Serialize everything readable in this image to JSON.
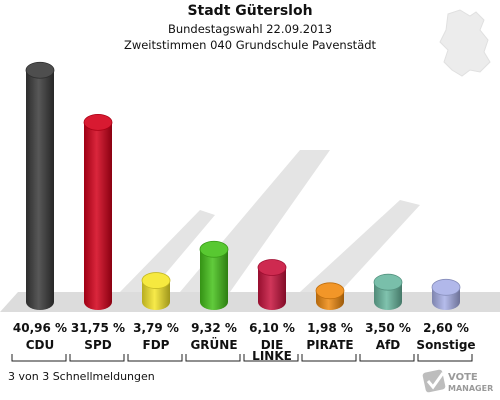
{
  "header": {
    "title": "Stadt Gütersloh",
    "subtitle": "Bundestagswahl 22.09.2013",
    "subtitle2": "Zweitstimmen 040 Grundschule Pavenstädt"
  },
  "footer": {
    "text": "3 von 3 Schnellmeldungen"
  },
  "watermark": {
    "line1": "VOTE",
    "line2": "MANAGER"
  },
  "chart_data": {
    "type": "bar",
    "title": "Stadt Gütersloh",
    "categories": [
      "CDU",
      "SPD",
      "FDP",
      "GRÜNE",
      "DIE LINKE",
      "PIRATE",
      "AfD",
      "Sonstige"
    ],
    "category_lines": [
      [
        "CDU"
      ],
      [
        "SPD"
      ],
      [
        "FDP"
      ],
      [
        "GRÜNE"
      ],
      [
        "DIE",
        "LINKE"
      ],
      [
        "PIRATE"
      ],
      [
        "AfD"
      ],
      [
        "Sonstige"
      ]
    ],
    "values": [
      40.96,
      31.75,
      3.79,
      9.32,
      6.1,
      1.98,
      3.5,
      2.6
    ],
    "value_labels": [
      "40,96 %",
      "31,75 %",
      "3,79 %",
      "9,32 %",
      "6,10 %",
      "1,98 %",
      "3,50 %",
      "2,60 %"
    ],
    "colors": [
      "#3a3a3a",
      "#d4001a",
      "#f5e62a",
      "#45c21a",
      "#c8123d",
      "#f08a10",
      "#6ab8a0",
      "#a8b0e8"
    ],
    "unit": "%",
    "ylim": [
      0,
      41
    ]
  }
}
